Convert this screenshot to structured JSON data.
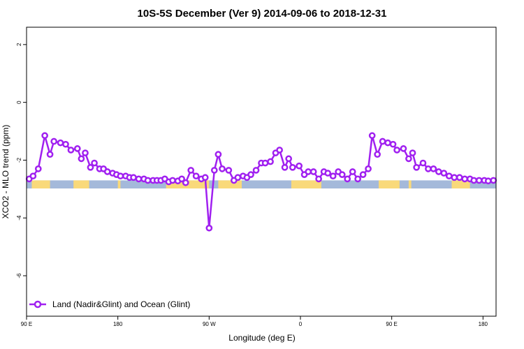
{
  "chart_data": {
    "type": "line",
    "title": "10S-5S December (Ver 9)   2014-09-06 to 2018-12-31",
    "xlabel": "Longitude (deg E)",
    "ylabel": "XCO2 - MLO trend (ppm)",
    "xlim": [
      90,
      450
    ],
    "ylim": [
      -7.4,
      2.6
    ],
    "xticks": [
      {
        "value": 90,
        "label": "90 E"
      },
      {
        "value": 160,
        "label": "180"
      },
      {
        "value": 230,
        "label": "90 W"
      },
      {
        "value": 300,
        "label": "0"
      },
      {
        "value": 370,
        "label": "90 E"
      },
      {
        "value": 440,
        "label": "180"
      }
    ],
    "yticks": [
      {
        "value": 2,
        "label": "2"
      },
      {
        "value": 0,
        "label": "0"
      },
      {
        "value": -2,
        "label": "-2"
      },
      {
        "value": -4,
        "label": "-4"
      },
      {
        "value": -6,
        "label": "-6"
      }
    ],
    "grid": false,
    "legend": {
      "position": "bottom-left",
      "entries": [
        "Land (Nadir&Glint) and Ocean (Glint)"
      ]
    },
    "series": [
      {
        "name": "Land (Nadir&Glint) and Ocean (Glint)",
        "color": "#a020f0",
        "x": [
          92,
          95,
          99,
          104,
          108,
          111,
          116,
          120,
          124,
          129,
          132,
          135,
          139,
          142,
          146,
          149,
          152,
          156,
          159,
          162,
          166,
          169,
          172,
          176,
          180,
          183,
          187,
          190,
          193,
          196,
          199,
          202,
          206,
          209,
          212,
          216,
          220,
          224,
          227,
          230,
          234,
          237,
          240,
          245,
          249,
          252,
          256,
          259,
          262,
          266,
          270,
          273,
          277,
          281,
          284,
          288,
          291,
          294,
          299,
          303,
          306,
          310,
          314,
          318,
          321,
          325,
          329,
          332,
          336,
          340,
          344,
          348,
          352,
          355,
          359,
          363,
          367,
          371,
          374,
          379,
          383,
          386,
          389,
          394,
          398,
          402,
          406,
          410,
          414,
          418,
          422,
          426,
          430,
          433,
          437,
          441,
          444,
          448
        ],
        "y": [
          -2.65,
          -2.55,
          -2.3,
          -1.15,
          -1.8,
          -1.35,
          -1.4,
          -1.45,
          -1.65,
          -1.6,
          -1.95,
          -1.75,
          -2.25,
          -2.1,
          -2.3,
          -2.3,
          -2.4,
          -2.45,
          -2.5,
          -2.55,
          -2.55,
          -2.6,
          -2.6,
          -2.65,
          -2.65,
          -2.7,
          -2.7,
          -2.7,
          -2.7,
          -2.65,
          -2.75,
          -2.7,
          -2.72,
          -2.65,
          -2.78,
          -2.35,
          -2.55,
          -2.65,
          -2.6,
          -4.35,
          -2.35,
          -1.8,
          -2.3,
          -2.35,
          -2.7,
          -2.6,
          -2.55,
          -2.6,
          -2.5,
          -2.35,
          -2.1,
          -2.1,
          -2.05,
          -1.75,
          -1.65,
          -2.25,
          -1.95,
          -2.25,
          -2.2,
          -2.5,
          -2.4,
          -2.4,
          -2.65,
          -2.4,
          -2.45,
          -2.55,
          -2.4,
          -2.5,
          -2.65,
          -2.4,
          -2.65,
          -2.5,
          -2.3,
          -1.15,
          -1.8,
          -1.35,
          -1.4,
          -1.45,
          -1.65,
          -1.6,
          -1.95,
          -1.75,
          -2.25,
          -2.1,
          -2.3,
          -2.3,
          -2.4,
          -2.45,
          -2.55,
          -2.6,
          -2.6,
          -2.65,
          -2.65,
          -2.7,
          -2.7,
          -2.7,
          -2.72,
          -2.7
        ]
      }
    ],
    "band": {
      "y_range": [
        -2.7,
        -2.98
      ],
      "ocean_color": "#a4b9da",
      "land_color": "#f9d97a",
      "land_x_ranges": [
        [
          94,
          108
        ],
        [
          126,
          138
        ],
        [
          160,
          162
        ],
        [
          197,
          230
        ],
        [
          237,
          255
        ],
        [
          293,
          316
        ],
        [
          360,
          376
        ],
        [
          383,
          385
        ],
        [
          416,
          430
        ]
      ]
    }
  }
}
